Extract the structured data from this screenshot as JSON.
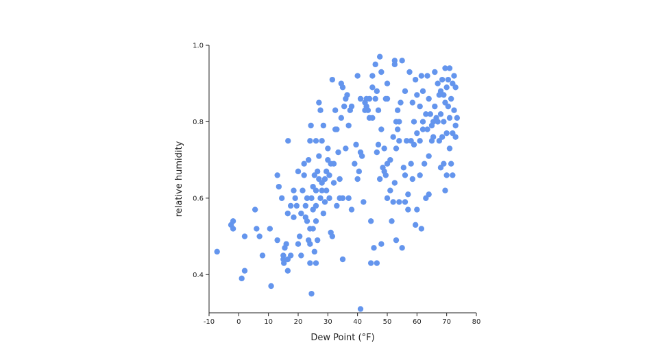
{
  "chart_data": {
    "type": "scatter",
    "title": "",
    "xlabel": "Dew Point (°F)",
    "ylabel": "relative humidity",
    "xlim": [
      -10,
      80
    ],
    "ylim": [
      0.3,
      1.0
    ],
    "x_ticks": [
      -10,
      0,
      10,
      20,
      30,
      40,
      50,
      60,
      70,
      80
    ],
    "x_tick_labels": [
      "-10",
      "0",
      "10",
      "20",
      "30",
      "40",
      "50",
      "60",
      "70",
      "80"
    ],
    "y_ticks": [
      0.4,
      0.6,
      0.8,
      1.0
    ],
    "y_tick_labels": [
      "0.4",
      "0.6",
      "0.8",
      "1.0"
    ],
    "grid": false,
    "marker_color": "#6495ed",
    "points": [
      [
        -7.3,
        0.46
      ],
      [
        -2.6,
        0.53
      ],
      [
        -1.9,
        0.54
      ],
      [
        -1.9,
        0.52
      ],
      [
        1,
        0.39
      ],
      [
        2,
        0.41
      ],
      [
        2,
        0.5
      ],
      [
        5.5,
        0.57
      ],
      [
        6,
        0.52
      ],
      [
        7,
        0.5
      ],
      [
        8,
        0.45
      ],
      [
        10.5,
        0.52
      ],
      [
        10.9,
        0.37
      ],
      [
        13,
        0.49
      ],
      [
        13,
        0.66
      ],
      [
        13.5,
        0.63
      ],
      [
        14.5,
        0.6
      ],
      [
        15,
        0.45
      ],
      [
        15,
        0.44
      ],
      [
        15.2,
        0.43
      ],
      [
        15.5,
        0.47
      ],
      [
        16,
        0.48
      ],
      [
        16.5,
        0.44
      ],
      [
        16.5,
        0.56
      ],
      [
        16.5,
        0.41
      ],
      [
        16.6,
        0.75
      ],
      [
        17.5,
        0.45
      ],
      [
        17.5,
        0.58
      ],
      [
        18.5,
        0.62
      ],
      [
        18.5,
        0.55
      ],
      [
        19,
        0.6
      ],
      [
        19.5,
        0.58
      ],
      [
        20,
        0.67
      ],
      [
        20,
        0.48
      ],
      [
        20.5,
        0.5
      ],
      [
        21,
        0.56
      ],
      [
        21,
        0.45
      ],
      [
        21.5,
        0.62
      ],
      [
        22,
        0.66
      ],
      [
        22,
        0.69
      ],
      [
        22.5,
        0.58
      ],
      [
        22.5,
        0.55
      ],
      [
        23,
        0.54
      ],
      [
        23,
        0.6
      ],
      [
        23.5,
        0.49
      ],
      [
        23.5,
        0.7
      ],
      [
        24,
        0.48
      ],
      [
        24,
        0.52
      ],
      [
        24,
        0.43
      ],
      [
        24,
        0.75
      ],
      [
        24.3,
        0.79
      ],
      [
        24.5,
        0.6
      ],
      [
        24.5,
        0.35
      ],
      [
        25,
        0.63
      ],
      [
        25,
        0.57
      ],
      [
        25,
        0.52
      ],
      [
        25.5,
        0.46
      ],
      [
        25.5,
        0.66
      ],
      [
        26,
        0.62
      ],
      [
        26,
        0.58
      ],
      [
        26,
        0.54
      ],
      [
        26,
        0.43
      ],
      [
        26,
        0.75
      ],
      [
        26.5,
        0.67
      ],
      [
        26.5,
        0.49
      ],
      [
        27,
        0.85
      ],
      [
        27,
        0.71
      ],
      [
        27,
        0.65
      ],
      [
        27.5,
        0.83
      ],
      [
        27.5,
        0.6
      ],
      [
        28,
        0.64
      ],
      [
        28,
        0.75
      ],
      [
        28,
        0.62
      ],
      [
        28.5,
        0.56
      ],
      [
        28.5,
        0.79
      ],
      [
        29,
        0.65
      ],
      [
        29,
        0.59
      ],
      [
        29.5,
        0.67
      ],
      [
        29.5,
        0.62
      ],
      [
        30,
        0.73
      ],
      [
        30,
        0.7
      ],
      [
        30.5,
        0.66
      ],
      [
        30.5,
        0.6
      ],
      [
        31,
        0.69
      ],
      [
        31,
        0.51
      ],
      [
        31.5,
        0.91
      ],
      [
        31.5,
        0.5
      ],
      [
        32,
        0.64
      ],
      [
        32,
        0.69
      ],
      [
        32.5,
        0.78
      ],
      [
        32.5,
        0.83
      ],
      [
        33,
        0.78
      ],
      [
        33,
        0.58
      ],
      [
        33.5,
        0.72
      ],
      [
        34,
        0.6
      ],
      [
        34,
        0.65
      ],
      [
        34.5,
        0.9
      ],
      [
        34.5,
        0.81
      ],
      [
        35,
        0.89
      ],
      [
        35,
        0.6
      ],
      [
        35,
        0.44
      ],
      [
        35.5,
        0.84
      ],
      [
        36,
        0.73
      ],
      [
        36,
        0.86
      ],
      [
        36.5,
        0.87
      ],
      [
        37,
        0.6
      ],
      [
        37,
        0.79
      ],
      [
        37.5,
        0.83
      ],
      [
        38,
        0.84
      ],
      [
        38,
        0.57
      ],
      [
        39,
        0.69
      ],
      [
        39.5,
        0.74
      ],
      [
        40,
        0.92
      ],
      [
        40,
        0.65
      ],
      [
        40.5,
        0.67
      ],
      [
        41,
        0.86
      ],
      [
        41,
        0.72
      ],
      [
        41,
        0.31
      ],
      [
        41.5,
        0.71
      ],
      [
        42,
        0.59
      ],
      [
        42.5,
        0.85
      ],
      [
        42.5,
        0.83
      ],
      [
        43,
        0.86
      ],
      [
        43,
        0.84
      ],
      [
        43.5,
        0.83
      ],
      [
        44,
        0.86
      ],
      [
        44,
        0.81
      ],
      [
        44.5,
        0.54
      ],
      [
        44.5,
        0.43
      ],
      [
        45,
        0.89
      ],
      [
        45,
        0.92
      ],
      [
        45,
        0.81
      ],
      [
        45.5,
        0.47
      ],
      [
        46,
        0.95
      ],
      [
        46,
        0.86
      ],
      [
        46.5,
        0.88
      ],
      [
        46.5,
        0.72
      ],
      [
        46.5,
        0.43
      ],
      [
        47,
        0.83
      ],
      [
        47,
        0.74
      ],
      [
        47.5,
        0.97
      ],
      [
        47.5,
        0.65
      ],
      [
        48,
        0.93
      ],
      [
        48,
        0.78
      ],
      [
        48,
        0.48
      ],
      [
        48.5,
        0.68
      ],
      [
        49,
        0.67
      ],
      [
        49,
        0.73
      ],
      [
        49.5,
        0.86
      ],
      [
        49.5,
        0.66
      ],
      [
        50,
        0.9
      ],
      [
        50,
        0.86
      ],
      [
        50,
        0.69
      ],
      [
        50,
        0.6
      ],
      [
        51,
        0.7
      ],
      [
        51,
        0.62
      ],
      [
        51.5,
        0.54
      ],
      [
        52,
        0.59
      ],
      [
        52,
        0.76
      ],
      [
        52.5,
        0.96
      ],
      [
        52.5,
        0.95
      ],
      [
        52.5,
        0.64
      ],
      [
        53,
        0.8
      ],
      [
        53,
        0.73
      ],
      [
        53,
        0.49
      ],
      [
        53.5,
        0.83
      ],
      [
        53.5,
        0.78
      ],
      [
        54,
        0.8
      ],
      [
        54,
        0.75
      ],
      [
        54,
        0.59
      ],
      [
        54.5,
        0.85
      ],
      [
        55,
        0.96
      ],
      [
        55,
        0.47
      ],
      [
        55.5,
        0.68
      ],
      [
        56,
        0.88
      ],
      [
        56,
        0.66
      ],
      [
        56,
        0.59
      ],
      [
        56.5,
        0.75
      ],
      [
        57,
        0.57
      ],
      [
        57,
        0.61
      ],
      [
        57.5,
        0.93
      ],
      [
        58,
        0.75
      ],
      [
        58,
        0.69
      ],
      [
        58.5,
        0.85
      ],
      [
        58.5,
        0.65
      ],
      [
        59,
        0.8
      ],
      [
        59,
        0.74
      ],
      [
        59.5,
        0.91
      ],
      [
        59.5,
        0.53
      ],
      [
        60,
        0.87
      ],
      [
        60,
        0.77
      ],
      [
        60,
        0.57
      ],
      [
        61,
        0.84
      ],
      [
        61,
        0.75
      ],
      [
        61,
        0.66
      ],
      [
        61.5,
        0.92
      ],
      [
        61.5,
        0.52
      ],
      [
        62,
        0.88
      ],
      [
        62,
        0.8
      ],
      [
        62,
        0.78
      ],
      [
        62.5,
        0.69
      ],
      [
        63,
        0.82
      ],
      [
        63,
        0.6
      ],
      [
        63.5,
        0.92
      ],
      [
        63.5,
        0.78
      ],
      [
        64,
        0.86
      ],
      [
        64,
        0.71
      ],
      [
        64,
        0.61
      ],
      [
        64.5,
        0.82
      ],
      [
        65,
        0.79
      ],
      [
        65,
        0.75
      ],
      [
        65.5,
        0.8
      ],
      [
        65.5,
        0.76
      ],
      [
        66,
        0.93
      ],
      [
        66,
        0.84
      ],
      [
        66.5,
        0.81
      ],
      [
        67,
        0.9
      ],
      [
        67,
        0.8
      ],
      [
        67.5,
        0.87
      ],
      [
        67.5,
        0.75
      ],
      [
        68,
        0.88
      ],
      [
        68,
        0.82
      ],
      [
        68,
        0.68
      ],
      [
        68.5,
        0.91
      ],
      [
        68.5,
        0.76
      ],
      [
        69,
        0.87
      ],
      [
        69,
        0.8
      ],
      [
        69,
        0.69
      ],
      [
        69.5,
        0.94
      ],
      [
        69.5,
        0.85
      ],
      [
        69.5,
        0.62
      ],
      [
        70,
        0.89
      ],
      [
        70,
        0.77
      ],
      [
        70,
        0.66
      ],
      [
        70.5,
        0.91
      ],
      [
        70.5,
        0.84
      ],
      [
        71,
        0.94
      ],
      [
        71,
        0.81
      ],
      [
        71,
        0.73
      ],
      [
        71.5,
        0.86
      ],
      [
        71.5,
        0.69
      ],
      [
        72,
        0.9
      ],
      [
        72,
        0.77
      ],
      [
        72,
        0.66
      ],
      [
        72.5,
        0.92
      ],
      [
        72.5,
        0.83
      ],
      [
        73,
        0.89
      ],
      [
        73,
        0.79
      ],
      [
        73,
        0.76
      ],
      [
        73.5,
        0.81
      ]
    ]
  }
}
